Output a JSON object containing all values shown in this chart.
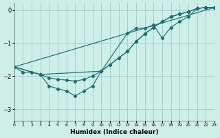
{
  "xlabel": "Humidex (Indice chaleur)",
  "xlim": [
    0,
    23
  ],
  "ylim": [
    -3.35,
    0.22
  ],
  "yticks": [
    0,
    -1,
    -2,
    -3
  ],
  "bg_color": "#ceeee8",
  "line_color": "#1a7070",
  "grid_color": "#a0d4cc",
  "lines": [
    {
      "x": [
        0,
        23
      ],
      "y": [
        -1.72,
        0.08
      ],
      "marker": false
    },
    {
      "x": [
        0,
        1,
        2,
        3,
        4,
        5,
        6,
        7,
        8,
        9,
        10,
        11,
        12,
        13,
        14,
        15,
        16,
        17,
        18,
        19,
        20,
        21,
        22,
        23
      ],
      "y": [
        -1.72,
        -1.88,
        -1.88,
        -1.95,
        -2.05,
        -2.1,
        -2.12,
        -2.15,
        -2.1,
        -2.0,
        -1.85,
        -1.65,
        -1.45,
        -1.25,
        -0.95,
        -0.72,
        -0.52,
        -0.35,
        -0.2,
        -0.12,
        -0.05,
        0.05,
        0.08,
        0.08
      ],
      "marker": true
    },
    {
      "x": [
        0,
        3,
        4,
        5,
        6,
        7,
        8,
        9,
        10,
        11,
        12,
        13,
        14,
        15,
        16,
        17,
        18,
        19,
        20,
        21,
        22,
        23
      ],
      "y": [
        -1.72,
        -1.95,
        -2.3,
        -2.38,
        -2.45,
        -2.6,
        -2.45,
        -2.3,
        -1.85,
        -1.65,
        -1.45,
        -1.25,
        -0.95,
        -0.72,
        -0.52,
        -0.35,
        -0.2,
        -0.12,
        -0.05,
        0.05,
        0.08,
        0.08
      ],
      "marker": true
    },
    {
      "x": [
        0,
        3,
        10,
        13,
        14,
        15,
        16,
        17,
        18,
        19,
        20,
        21,
        22,
        23
      ],
      "y": [
        -1.72,
        -1.95,
        -1.85,
        -0.7,
        -0.55,
        -0.55,
        -0.45,
        -0.85,
        -0.52,
        -0.35,
        -0.2,
        0.05,
        0.08,
        0.08
      ],
      "marker": true
    }
  ]
}
